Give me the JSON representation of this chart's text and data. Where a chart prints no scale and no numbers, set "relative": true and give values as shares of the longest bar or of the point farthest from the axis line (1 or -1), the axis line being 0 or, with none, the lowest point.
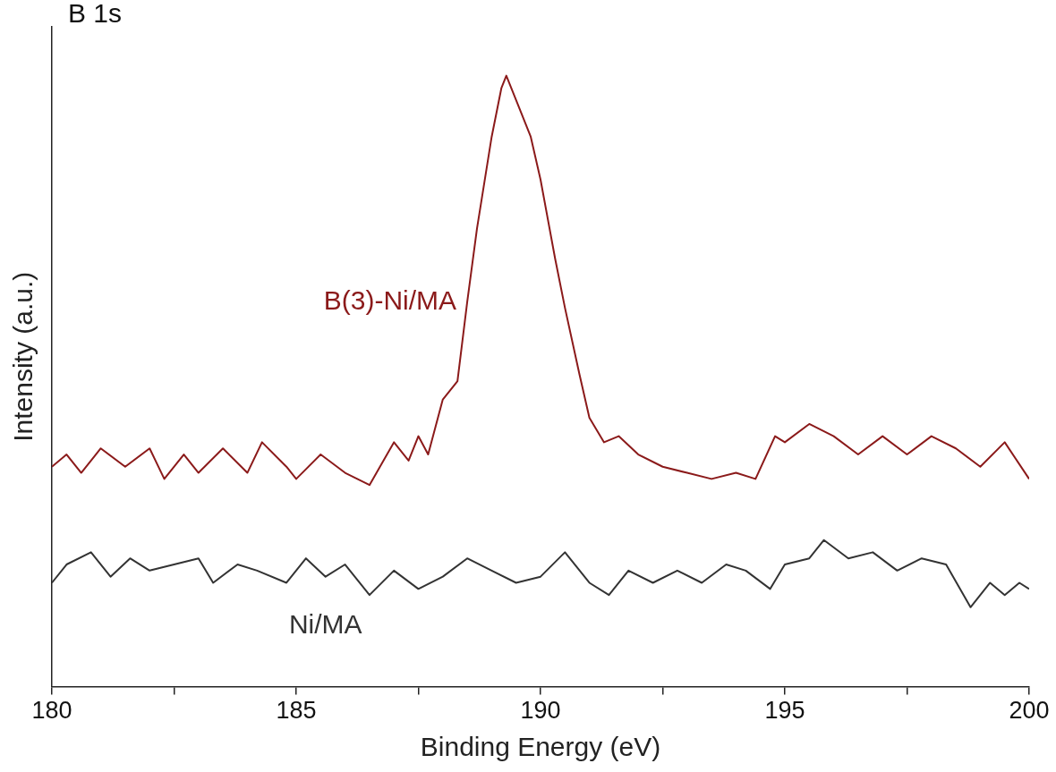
{
  "chart_data": {
    "type": "line",
    "relative": true,
    "xlabel": "Binding Energy (eV)",
    "ylabel": "Intensity (a.u.)",
    "annotations": [
      "B 1s"
    ],
    "xlim": [
      180,
      200
    ],
    "xticks": [
      180,
      {
        "value": 182.5,
        "label": null
      },
      185,
      {
        "value": 187.5,
        "label": null
      },
      190,
      {
        "value": 192.5,
        "label": null
      },
      195,
      {
        "value": 197.5,
        "label": null
      },
      200
    ],
    "grid": false,
    "legend": false,
    "marker": "none",
    "line_style": "solid",
    "series": [
      {
        "name": "B(3)-Ni/MA",
        "color": "#8b1a1a",
        "x": [
          180,
          180.3,
          180.6,
          181,
          181.5,
          182,
          182.3,
          182.7,
          183,
          183.5,
          184,
          184.3,
          184.8,
          185,
          185.5,
          186,
          186.5,
          187,
          187.3,
          187.5,
          187.7,
          188,
          188.3,
          188.5,
          188.7,
          189,
          189.2,
          189.3,
          189.5,
          189.8,
          190,
          190.3,
          190.5,
          190.8,
          191,
          191.3,
          191.6,
          192,
          192.5,
          193,
          193.5,
          194,
          194.4,
          194.8,
          195,
          195.5,
          196,
          196.5,
          197,
          197.5,
          198,
          198.5,
          199,
          199.5,
          200
        ],
        "values": [
          0.36,
          0.38,
          0.35,
          0.39,
          0.36,
          0.39,
          0.34,
          0.38,
          0.35,
          0.39,
          0.35,
          0.4,
          0.36,
          0.34,
          0.38,
          0.35,
          0.33,
          0.4,
          0.37,
          0.41,
          0.38,
          0.47,
          0.5,
          0.63,
          0.75,
          0.9,
          0.98,
          1,
          0.96,
          0.9,
          0.83,
          0.7,
          0.62,
          0.51,
          0.44,
          0.4,
          0.41,
          0.38,
          0.36,
          0.35,
          0.34,
          0.35,
          0.34,
          0.41,
          0.4,
          0.43,
          0.41,
          0.38,
          0.41,
          0.38,
          0.41,
          0.39,
          0.36,
          0.4,
          0.34
        ]
      },
      {
        "name": "Ni/MA",
        "color": "#333333",
        "x": [
          180,
          180.3,
          180.8,
          181.2,
          181.6,
          182,
          182.5,
          183,
          183.3,
          183.8,
          184.2,
          184.8,
          185.2,
          185.6,
          186,
          186.5,
          187,
          187.5,
          188,
          188.5,
          189,
          189.5,
          190,
          190.5,
          191,
          191.4,
          191.8,
          192.3,
          192.8,
          193.3,
          193.8,
          194.2,
          194.7,
          195,
          195.5,
          195.8,
          196.3,
          196.8,
          197.3,
          197.8,
          198.3,
          198.8,
          199.2,
          199.5,
          199.8,
          200
        ],
        "values": [
          0.17,
          0.2,
          0.22,
          0.18,
          0.21,
          0.19,
          0.2,
          0.21,
          0.17,
          0.2,
          0.19,
          0.17,
          0.21,
          0.18,
          0.2,
          0.15,
          0.19,
          0.16,
          0.18,
          0.21,
          0.19,
          0.17,
          0.18,
          0.22,
          0.17,
          0.15,
          0.19,
          0.17,
          0.19,
          0.17,
          0.2,
          0.19,
          0.16,
          0.2,
          0.21,
          0.24,
          0.21,
          0.22,
          0.19,
          0.21,
          0.2,
          0.13,
          0.17,
          0.15,
          0.17,
          0.16
        ]
      }
    ]
  }
}
